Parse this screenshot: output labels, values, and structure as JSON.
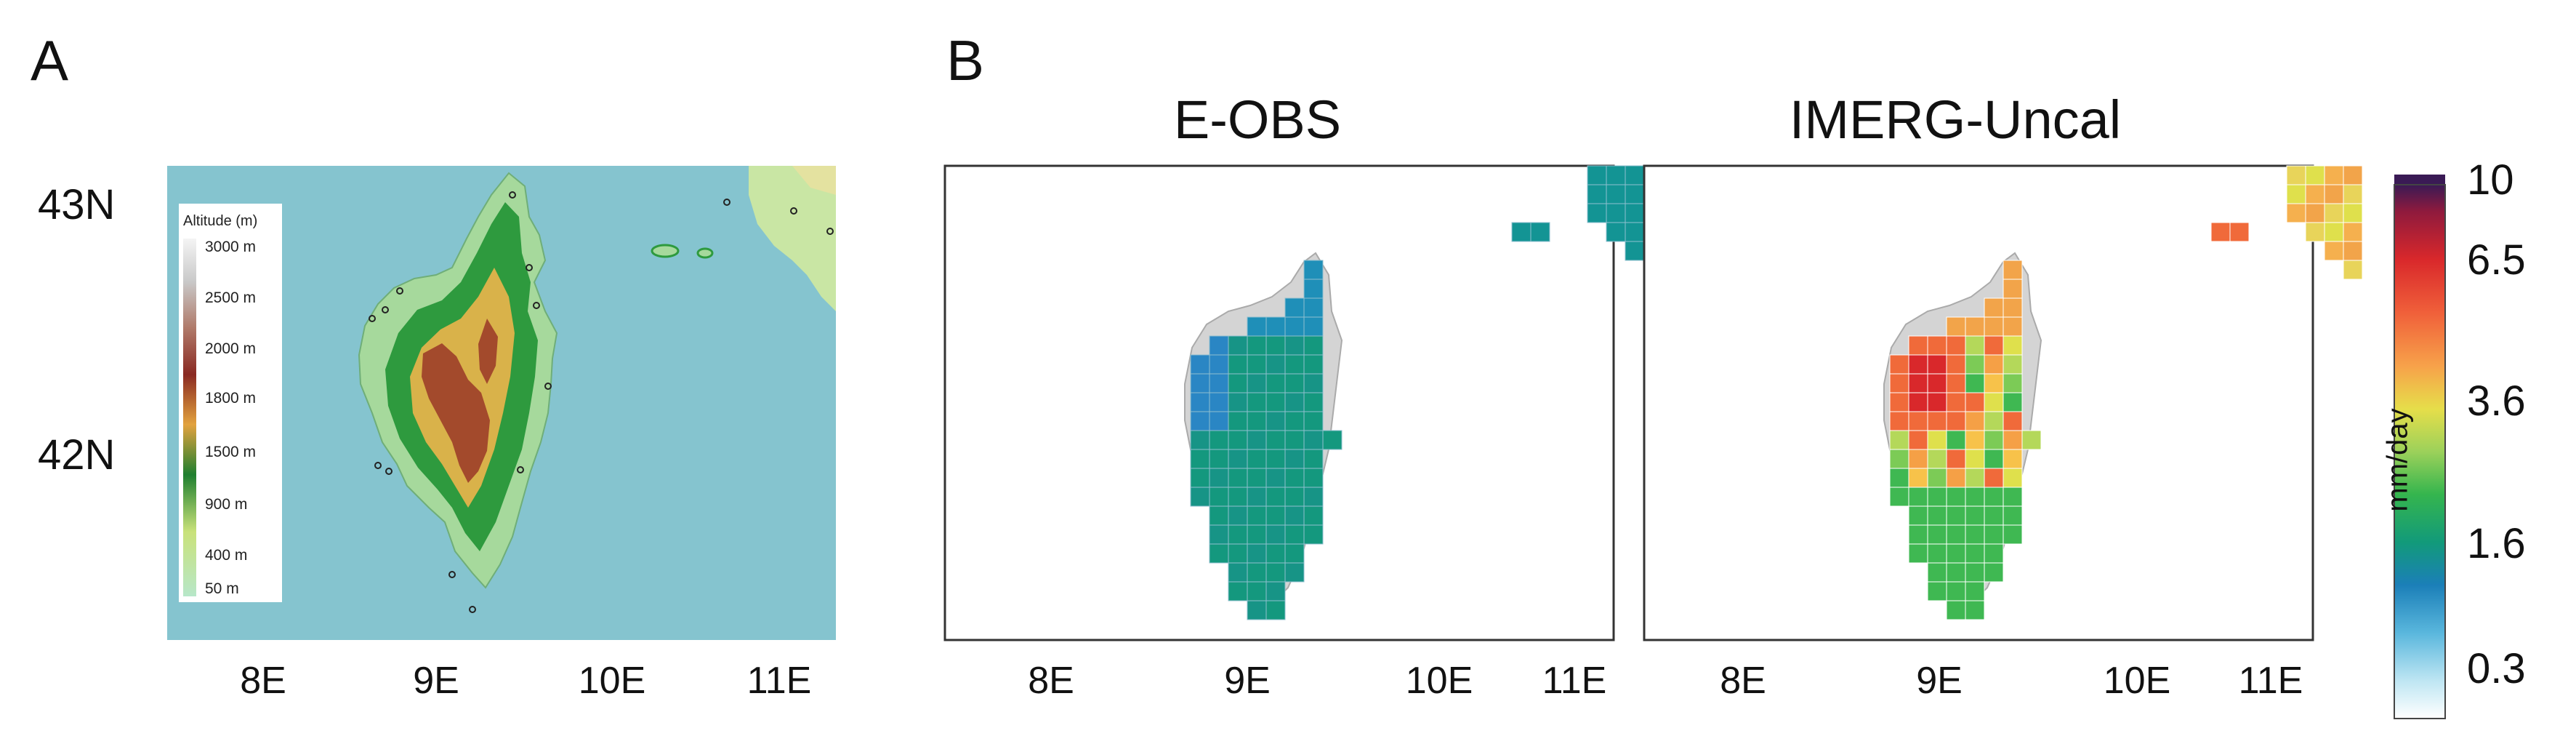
{
  "panels": {
    "a": {
      "letter": "A"
    },
    "b": {
      "letter": "B"
    }
  },
  "topography": {
    "latitudes": [
      "43N",
      "42N"
    ],
    "longitudes": [
      "8E",
      "9E",
      "10E",
      "11E"
    ],
    "legend": {
      "title": "Altitude (m)",
      "labels": [
        "3000 m",
        "2500 m",
        "2000 m",
        "1800 m",
        "1500 m",
        "900 m",
        "400 m",
        "50 m"
      ]
    },
    "colors": {
      "sea": "#85c4cf",
      "lowland": "#a8dcb0",
      "forest": "#2e9a3e",
      "mid": "#d9b24a",
      "high": "#a34a2c"
    }
  },
  "precip_maps": [
    {
      "title": "E-OBS",
      "longitudes": [
        "8E",
        "9E",
        "10E",
        "11E"
      ]
    },
    {
      "title": "IMERG-Uncal",
      "longitudes": [
        "8E",
        "9E",
        "10E",
        "11E"
      ]
    }
  ],
  "colorbar": {
    "unit": "mm/day",
    "tick_labels": [
      "10",
      "6.5",
      "3.6",
      "1.6",
      "0.3"
    ],
    "colors": [
      "#3a1a55",
      "#8f1a3d",
      "#d9282b",
      "#f0603a",
      "#f7a24a",
      "#e6de4a",
      "#9cd15a",
      "#35b54e",
      "#129a7a",
      "#1b7fb8",
      "#5ab7dd",
      "#bfe6f3",
      "#ffffff"
    ]
  }
}
